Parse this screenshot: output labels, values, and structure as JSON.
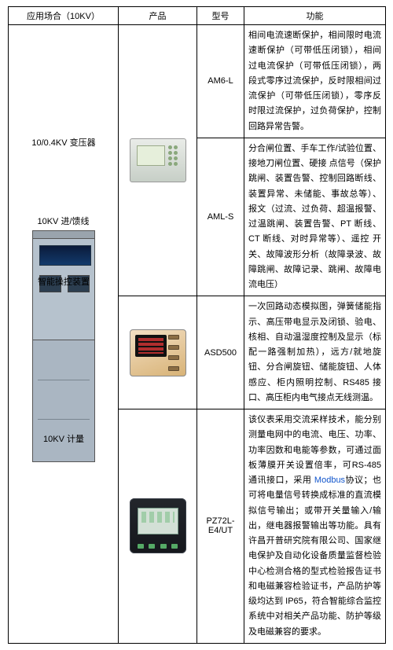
{
  "header": {
    "col1": "应用场合（10KV）",
    "col2": "产品",
    "col3": "型号",
    "col4": "功能"
  },
  "rows": [
    {
      "app": "10KV 进/馈线",
      "model": "AM6-L",
      "func": "相间电流速断保护，相间限时电流速断保护（可带低压闭锁），相间过电流保护（可带低压闭锁），两段式零序过流保护，反时限相间过流保护（可带低压闭锁），零序反时限过流保护，过负荷保护，控制回路异常告警。"
    },
    {
      "app": "10/0.4KV 变压器",
      "model": "AML-S",
      "func": "分合闸位置、手车工作/试验位置、接地刀闸位置、硬接 点信号（保护跳闸、装置告警、控制回路断线、装置异常、未储能、事故总等）、报文（过流、过负荷、超温报警、过温跳闸、装置告警、PT 断线、CT 断线、对时异常等）、遥控 开关、故障波形分析（故障录波、故障跳闸、故障记录、跳闸、故障电流电压）"
    },
    {
      "app": "智能操控装置",
      "model": "ASD500",
      "func": "一次回路动态模拟图，弹簧储能指示、高压带电显示及闭锁、验电、核相、自动温湿度控制及显示（标配一路强制加热），远方/就地旋钮、分合闸旋钮、储能旋钮、人体感应、柜内照明控制、RS485 接口、高压柜内电气接点无线测温。"
    },
    {
      "app": "10KV 计量",
      "model": "PZ72L-E4/UT",
      "func_html": "该仪表采用交流采样技术，能分别测量电网中的电流、电压、功率、功率因数和电能等参数，可通过面板薄膜开关设置倍率，可RS-485 通讯接口，采用 <span class='blue'>Modbus</span>协议；也可将电量信号转换成标准的直流模拟信号输出；或带开关量输入/输出，继电器报警输出等功能。具有许昌开普研究院有限公司、国家继电保护及自动化设备质量监督检验中心检测合格的型式检验报告证书和电磁兼容检验证书，产品防护等级均达到 IP65，符合智能综合监控系统中对相关产品功能、防护等级及电磁兼容的要求。"
    }
  ]
}
